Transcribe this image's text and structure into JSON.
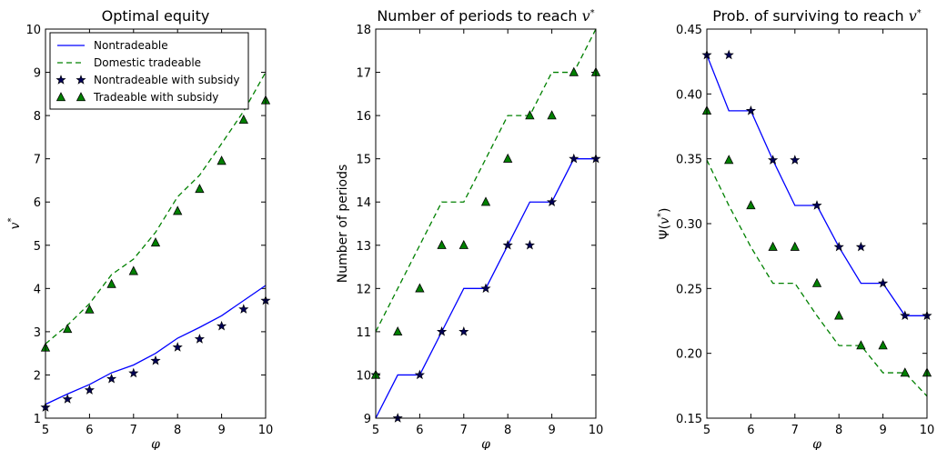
{
  "colors": {
    "nontradeable": "#0000ff",
    "tradeable": "#008000",
    "star": "#000055",
    "triangle": "#008000"
  },
  "chart_data": [
    {
      "type": "line",
      "title": "Optimal equity",
      "xlabel": "φ",
      "ylabel": "v*",
      "xlim": [
        5,
        10
      ],
      "ylim": [
        1,
        10
      ],
      "xticks": [
        "5",
        "6",
        "7",
        "8",
        "9",
        "10"
      ],
      "yticks": [
        "1",
        "2",
        "3",
        "4",
        "5",
        "6",
        "7",
        "8",
        "9",
        "10"
      ],
      "x": [
        5,
        5.5,
        6,
        6.5,
        7,
        7.5,
        8,
        8.5,
        9,
        9.5,
        10
      ],
      "series": [
        {
          "name": "Nontradeable",
          "style": "line",
          "values": [
            1.32,
            1.56,
            1.78,
            2.05,
            2.23,
            2.5,
            2.85,
            3.1,
            3.37,
            3.72,
            4.07
          ]
        },
        {
          "name": "Domestic tradeable",
          "style": "dashed",
          "values": [
            2.72,
            3.15,
            3.65,
            4.32,
            4.68,
            5.3,
            6.12,
            6.62,
            7.35,
            8.1,
            9.0
          ]
        },
        {
          "name": "Nontradeable with subsidy",
          "style": "star",
          "values": [
            1.25,
            1.44,
            1.65,
            1.91,
            2.04,
            2.33,
            2.64,
            2.83,
            3.13,
            3.52,
            3.72
          ]
        },
        {
          "name": "Tradeable with subsidy",
          "style": "triangle",
          "values": [
            2.63,
            3.06,
            3.51,
            4.1,
            4.4,
            5.06,
            5.79,
            6.3,
            6.95,
            7.9,
            8.35
          ]
        }
      ],
      "legend": "upper-left"
    },
    {
      "type": "line",
      "title": "Number of periods to reach v*",
      "xlabel": "φ",
      "ylabel": "Number of periods",
      "xlim": [
        5,
        10
      ],
      "ylim": [
        9,
        18
      ],
      "xticks": [
        "5",
        "6",
        "7",
        "8",
        "9",
        "10"
      ],
      "yticks": [
        "9",
        "10",
        "11",
        "12",
        "13",
        "14",
        "15",
        "16",
        "17",
        "18"
      ],
      "x": [
        5,
        5.5,
        6,
        6.5,
        7,
        7.5,
        8,
        8.5,
        9,
        9.5,
        10
      ],
      "series": [
        {
          "style": "line",
          "values": [
            9,
            10,
            10,
            11,
            12,
            12,
            13,
            14,
            14,
            15,
            15
          ]
        },
        {
          "style": "dashed",
          "values": [
            11,
            12,
            13,
            14,
            14,
            15,
            16,
            16,
            17,
            17,
            18
          ]
        },
        {
          "style": "star",
          "values": [
            10,
            9,
            10,
            11,
            11,
            12,
            13,
            13,
            14,
            15,
            15
          ]
        },
        {
          "style": "triangle",
          "values": [
            10,
            11,
            12,
            13,
            13,
            14,
            15,
            16,
            16,
            17,
            17
          ]
        }
      ]
    },
    {
      "type": "line",
      "title": "Prob. of surviving to reach v*",
      "xlabel": "φ",
      "ylabel": "Ψ(v*)",
      "xlim": [
        5,
        10
      ],
      "ylim": [
        0.15,
        0.45
      ],
      "xticks": [
        "5",
        "6",
        "7",
        "8",
        "9",
        "10"
      ],
      "yticks": [
        "0.15",
        "0.20",
        "0.25",
        "0.30",
        "0.35",
        "0.40",
        "0.45"
      ],
      "x": [
        5,
        5.5,
        6,
        6.5,
        7,
        7.5,
        8,
        8.5,
        9,
        9.5,
        10
      ],
      "series": [
        {
          "style": "line",
          "values": [
            0.43,
            0.387,
            0.387,
            0.349,
            0.314,
            0.314,
            0.282,
            0.254,
            0.254,
            0.229,
            0.229
          ]
        },
        {
          "style": "dashed",
          "values": [
            0.349,
            0.314,
            0.282,
            0.254,
            0.254,
            0.229,
            0.206,
            0.206,
            0.185,
            0.185,
            0.167
          ]
        },
        {
          "style": "star",
          "values": [
            0.43,
            0.43,
            0.387,
            0.349,
            0.349,
            0.314,
            0.282,
            0.282,
            0.254,
            0.229,
            0.229
          ]
        },
        {
          "style": "triangle",
          "values": [
            0.387,
            0.349,
            0.314,
            0.282,
            0.282,
            0.254,
            0.229,
            0.206,
            0.206,
            0.185,
            0.185
          ]
        }
      ]
    }
  ]
}
